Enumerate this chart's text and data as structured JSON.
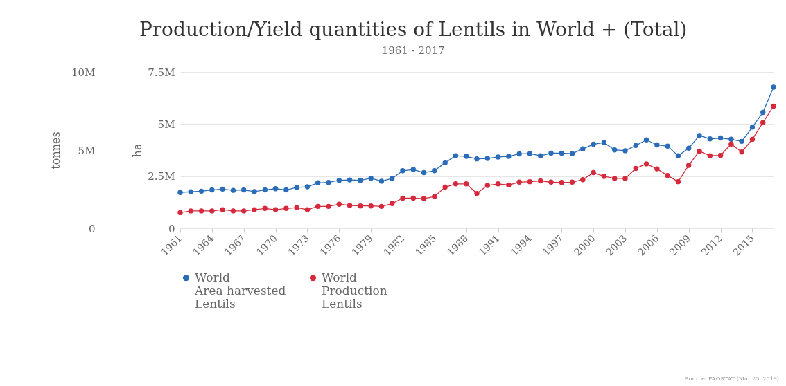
{
  "chart_data": {
    "type": "line",
    "title": "Production/Yield quantities of Lentils in World + (Total)",
    "subtitle": "1961 - 2017",
    "ylabel": "ha",
    "y2label": "tonnes",
    "x": [
      1961,
      1962,
      1963,
      1964,
      1965,
      1966,
      1967,
      1968,
      1969,
      1970,
      1971,
      1972,
      1973,
      1974,
      1975,
      1976,
      1977,
      1978,
      1979,
      1980,
      1981,
      1982,
      1983,
      1984,
      1985,
      1986,
      1987,
      1988,
      1989,
      1990,
      1991,
      1992,
      1993,
      1994,
      1995,
      1996,
      1997,
      1998,
      1999,
      2000,
      2001,
      2002,
      2003,
      2004,
      2005,
      2006,
      2007,
      2008,
      2009,
      2010,
      2011,
      2012,
      2013,
      2014,
      2015,
      2016,
      2017
    ],
    "xlim": [
      1961,
      2017
    ],
    "xticks": [
      1961,
      1964,
      1967,
      1970,
      1973,
      1976,
      1979,
      1982,
      1985,
      1988,
      1991,
      1994,
      1997,
      2000,
      2003,
      2006,
      2009,
      2012,
      2015
    ],
    "ylim": [
      0,
      7500000
    ],
    "yticks": [
      {
        "value": 0,
        "label": "0"
      },
      {
        "value": 2500000,
        "label": "2.5M"
      },
      {
        "value": 5000000,
        "label": "5M"
      },
      {
        "value": 7500000,
        "label": "7.5M"
      }
    ],
    "y2lim": [
      0,
      10000000
    ],
    "y2ticks": [
      {
        "value": 0,
        "label": "0"
      },
      {
        "value": 5000000,
        "label": "5M"
      },
      {
        "value": 10000000,
        "label": "10M"
      }
    ],
    "series": [
      {
        "name": "World\nArea harvested\nLentils",
        "color": "#2b6cb8",
        "values": [
          1720000,
          1750000,
          1780000,
          1840000,
          1880000,
          1820000,
          1840000,
          1760000,
          1840000,
          1900000,
          1840000,
          1960000,
          1990000,
          2180000,
          2200000,
          2300000,
          2320000,
          2300000,
          2400000,
          2260000,
          2390000,
          2760000,
          2820000,
          2670000,
          2760000,
          3140000,
          3480000,
          3450000,
          3330000,
          3350000,
          3420000,
          3450000,
          3570000,
          3580000,
          3480000,
          3600000,
          3600000,
          3580000,
          3810000,
          4030000,
          4110000,
          3760000,
          3720000,
          3970000,
          4240000,
          4000000,
          3940000,
          3480000,
          3840000,
          4450000,
          4290000,
          4330000,
          4270000,
          4170000,
          4850000,
          5560000,
          6770000
        ]
      },
      {
        "name": "World\nProduction\nLentils",
        "color": "#d42a3c",
        "axis": "y2",
        "values": [
          1000000,
          1110000,
          1110000,
          1110000,
          1190000,
          1110000,
          1110000,
          1190000,
          1270000,
          1190000,
          1270000,
          1320000,
          1190000,
          1400000,
          1400000,
          1540000,
          1460000,
          1430000,
          1430000,
          1400000,
          1580000,
          1930000,
          1930000,
          1900000,
          2030000,
          2630000,
          2840000,
          2840000,
          2230000,
          2740000,
          2840000,
          2770000,
          2950000,
          2980000,
          3030000,
          2950000,
          2930000,
          2950000,
          3110000,
          3560000,
          3320000,
          3190000,
          3190000,
          3830000,
          4120000,
          3800000,
          3380000,
          2980000,
          4030000,
          4930000,
          4640000,
          4660000,
          5390000,
          4880000,
          5690000,
          6760000,
          7810000
        ]
      }
    ],
    "grid": "y",
    "legend": "bottom",
    "marker": "circle",
    "annotations": [
      "Source: FAOSTAT (Mar 23, 2019)"
    ]
  }
}
